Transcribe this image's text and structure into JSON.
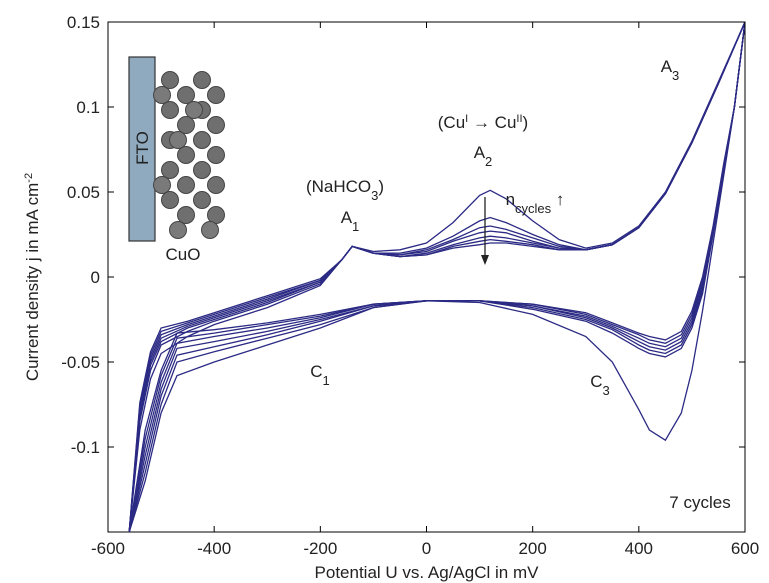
{
  "chart_data": {
    "type": "line",
    "xlabel": [
      {
        "t": "Potential U vs. Ag/AgCl in mV"
      }
    ],
    "ylabel": [
      {
        "t": "Current density j in mA cm"
      },
      {
        "t": "-2",
        "sup": true
      }
    ],
    "xlim": [
      -600,
      600
    ],
    "xticks": [
      -600,
      -400,
      -200,
      0,
      200,
      400,
      600
    ],
    "ylim": [
      -0.15,
      0.15
    ],
    "yticks": [
      -0.1,
      -0.05,
      0,
      0.05,
      0.1,
      0.15
    ],
    "x": [
      -560,
      -540,
      -520,
      -500,
      -450,
      -400,
      -300,
      -200,
      -160,
      -140,
      -100,
      -50,
      0,
      50,
      100,
      120,
      150,
      200,
      250,
      300,
      350,
      400,
      450,
      500,
      550,
      600,
      580,
      560,
      540,
      520,
      500,
      480,
      450,
      420,
      400,
      350,
      300,
      200,
      100,
      0,
      -100,
      -200,
      -300,
      -400,
      -470,
      -500,
      -530,
      -560
    ],
    "series": [
      {
        "color": "#2b2a84",
        "values": [
          -0.15,
          -0.09,
          -0.06,
          -0.045,
          -0.035,
          -0.028,
          -0.018,
          -0.005,
          0.01,
          0.018,
          0.015,
          0.016,
          0.02,
          0.032,
          0.048,
          0.051,
          0.046,
          0.033,
          0.022,
          0.017,
          0.02,
          0.03,
          0.05,
          0.08,
          0.115,
          0.15,
          0.1,
          0.06,
          0.02,
          -0.02,
          -0.055,
          -0.08,
          -0.096,
          -0.09,
          -0.078,
          -0.05,
          -0.035,
          -0.022,
          -0.015,
          -0.014,
          -0.018,
          -0.03,
          -0.04,
          -0.05,
          -0.058,
          -0.08,
          -0.12,
          -0.15
        ]
      },
      {
        "color": "#2b2a84",
        "values": [
          -0.15,
          -0.085,
          -0.055,
          -0.04,
          -0.032,
          -0.026,
          -0.016,
          -0.004,
          0.01,
          0.018,
          0.014,
          0.014,
          0.017,
          0.024,
          0.033,
          0.035,
          0.032,
          0.025,
          0.019,
          0.016,
          0.019,
          0.029,
          0.049,
          0.079,
          0.114,
          0.15,
          0.1,
          0.062,
          0.025,
          -0.01,
          -0.03,
          -0.042,
          -0.047,
          -0.045,
          -0.042,
          -0.033,
          -0.026,
          -0.019,
          -0.014,
          -0.014,
          -0.018,
          -0.028,
          -0.036,
          -0.044,
          -0.05,
          -0.075,
          -0.115,
          -0.15
        ]
      },
      {
        "color": "#2b2a84",
        "values": [
          -0.15,
          -0.082,
          -0.052,
          -0.038,
          -0.03,
          -0.025,
          -0.015,
          -0.003,
          0.01,
          0.018,
          0.014,
          0.013,
          0.016,
          0.022,
          0.029,
          0.03,
          0.028,
          0.023,
          0.018,
          0.016,
          0.019,
          0.029,
          0.049,
          0.079,
          0.114,
          0.15,
          0.1,
          0.063,
          0.026,
          -0.008,
          -0.028,
          -0.04,
          -0.045,
          -0.043,
          -0.04,
          -0.031,
          -0.025,
          -0.018,
          -0.014,
          -0.014,
          -0.017,
          -0.026,
          -0.034,
          -0.041,
          -0.046,
          -0.07,
          -0.11,
          -0.15
        ]
      },
      {
        "color": "#2b2a84",
        "values": [
          -0.15,
          -0.08,
          -0.05,
          -0.036,
          -0.029,
          -0.024,
          -0.014,
          -0.003,
          0.01,
          0.018,
          0.014,
          0.013,
          0.015,
          0.021,
          0.026,
          0.027,
          0.026,
          0.021,
          0.017,
          0.016,
          0.019,
          0.029,
          0.049,
          0.079,
          0.114,
          0.15,
          0.1,
          0.064,
          0.027,
          -0.006,
          -0.026,
          -0.038,
          -0.043,
          -0.041,
          -0.038,
          -0.03,
          -0.024,
          -0.017,
          -0.014,
          -0.014,
          -0.017,
          -0.025,
          -0.032,
          -0.038,
          -0.042,
          -0.066,
          -0.105,
          -0.15
        ]
      },
      {
        "color": "#2b2a84",
        "values": [
          -0.15,
          -0.078,
          -0.048,
          -0.034,
          -0.028,
          -0.023,
          -0.013,
          -0.002,
          0.01,
          0.018,
          0.014,
          0.012,
          0.014,
          0.019,
          0.023,
          0.024,
          0.023,
          0.02,
          0.017,
          0.016,
          0.019,
          0.029,
          0.049,
          0.079,
          0.114,
          0.15,
          0.1,
          0.065,
          0.028,
          -0.004,
          -0.024,
          -0.036,
          -0.041,
          -0.039,
          -0.036,
          -0.029,
          -0.023,
          -0.017,
          -0.014,
          -0.014,
          -0.016,
          -0.024,
          -0.03,
          -0.035,
          -0.039,
          -0.062,
          -0.1,
          -0.15
        ]
      },
      {
        "color": "#2b2a84",
        "values": [
          -0.15,
          -0.076,
          -0.046,
          -0.032,
          -0.027,
          -0.022,
          -0.012,
          -0.002,
          0.01,
          0.018,
          0.014,
          0.012,
          0.013,
          0.018,
          0.021,
          0.022,
          0.021,
          0.019,
          0.016,
          0.016,
          0.019,
          0.029,
          0.049,
          0.079,
          0.114,
          0.15,
          0.1,
          0.066,
          0.029,
          -0.002,
          -0.022,
          -0.034,
          -0.039,
          -0.037,
          -0.034,
          -0.028,
          -0.022,
          -0.016,
          -0.014,
          -0.014,
          -0.016,
          -0.023,
          -0.028,
          -0.033,
          -0.036,
          -0.058,
          -0.095,
          -0.15
        ]
      },
      {
        "color": "#2b2a84",
        "values": [
          -0.15,
          -0.074,
          -0.044,
          -0.03,
          -0.026,
          -0.021,
          -0.011,
          -0.001,
          0.01,
          0.018,
          0.014,
          0.012,
          0.013,
          0.017,
          0.019,
          0.02,
          0.02,
          0.018,
          0.016,
          0.016,
          0.019,
          0.029,
          0.049,
          0.079,
          0.114,
          0.15,
          0.1,
          0.067,
          0.03,
          0,
          -0.02,
          -0.032,
          -0.037,
          -0.035,
          -0.033,
          -0.027,
          -0.021,
          -0.016,
          -0.014,
          -0.014,
          -0.016,
          -0.022,
          -0.027,
          -0.031,
          -0.033,
          -0.055,
          -0.09,
          -0.15
        ]
      }
    ],
    "annotations": [
      [
        {
          "t": "(NaHCO"
        },
        {
          "t": "3",
          "sub": true
        },
        {
          "t": ")"
        }
      ],
      [
        {
          "t": "A"
        },
        {
          "t": "1",
          "sub": true
        }
      ],
      [
        {
          "t": "(Cu"
        },
        {
          "t": "I",
          "sup": true
        },
        {
          "t": " → Cu"
        },
        {
          "t": "II",
          "sup": true
        },
        {
          "t": ")"
        }
      ],
      [
        {
          "t": "A"
        },
        {
          "t": "2",
          "sub": true
        }
      ],
      [
        {
          "t": "n"
        },
        {
          "t": "cycles",
          "sub": true
        },
        {
          "t": " ↑"
        }
      ],
      [
        {
          "t": "A"
        },
        {
          "t": "3",
          "sub": true
        }
      ],
      [
        {
          "t": "C"
        },
        {
          "t": "1",
          "sub": true
        }
      ],
      [
        {
          "t": "C"
        },
        {
          "t": "3",
          "sub": true
        }
      ],
      [
        {
          "t": "7 cycles"
        }
      ]
    ],
    "inset": {
      "substrate": "FTO",
      "film": "CuO"
    }
  }
}
